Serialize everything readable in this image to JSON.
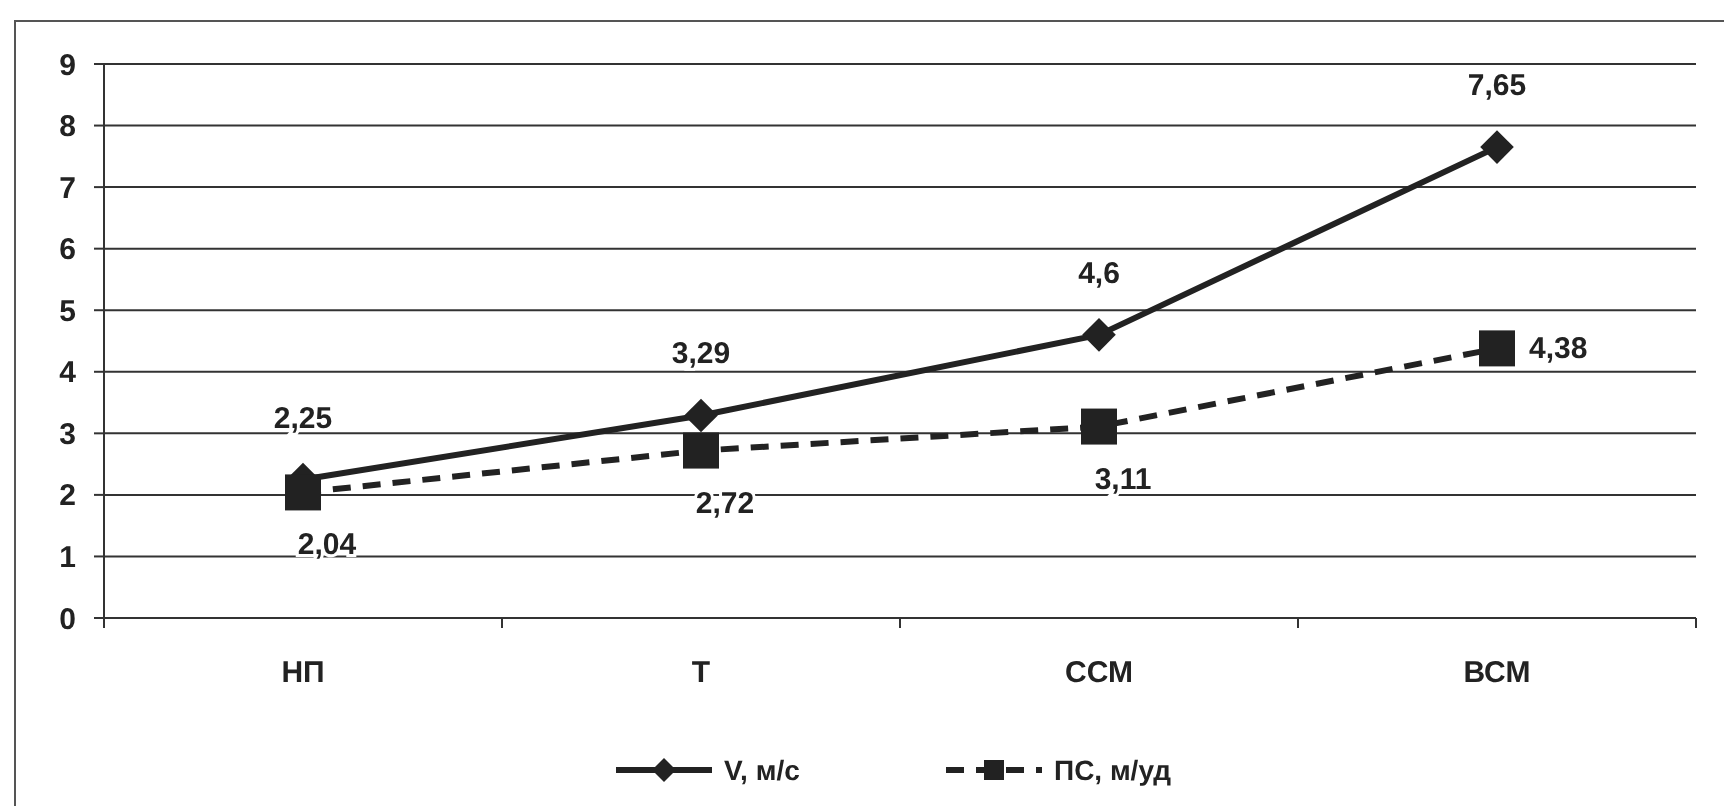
{
  "chart_data": {
    "type": "line",
    "categories": [
      "НП",
      "Т",
      "ССМ",
      "ВСМ"
    ],
    "series": [
      {
        "name": "V, м/с",
        "color": "#222222",
        "values": [
          2.25,
          3.29,
          4.6,
          7.65
        ],
        "value_labels": [
          "2,25",
          "3,29",
          "4,6",
          "7,65"
        ],
        "marker": "diamond",
        "line_style": "solid"
      },
      {
        "name": "ПС, м/уд",
        "color": "#222222",
        "values": [
          2.04,
          2.72,
          3.11,
          4.38
        ],
        "value_labels": [
          "2,04",
          "2,72",
          "3,11",
          "4,38"
        ],
        "marker": "square",
        "line_style": "dashed"
      }
    ],
    "ylim": [
      0,
      9
    ],
    "yticks": [
      0,
      1,
      2,
      3,
      4,
      5,
      6,
      7,
      8,
      9
    ],
    "grid": "y",
    "legend": "bottom"
  }
}
